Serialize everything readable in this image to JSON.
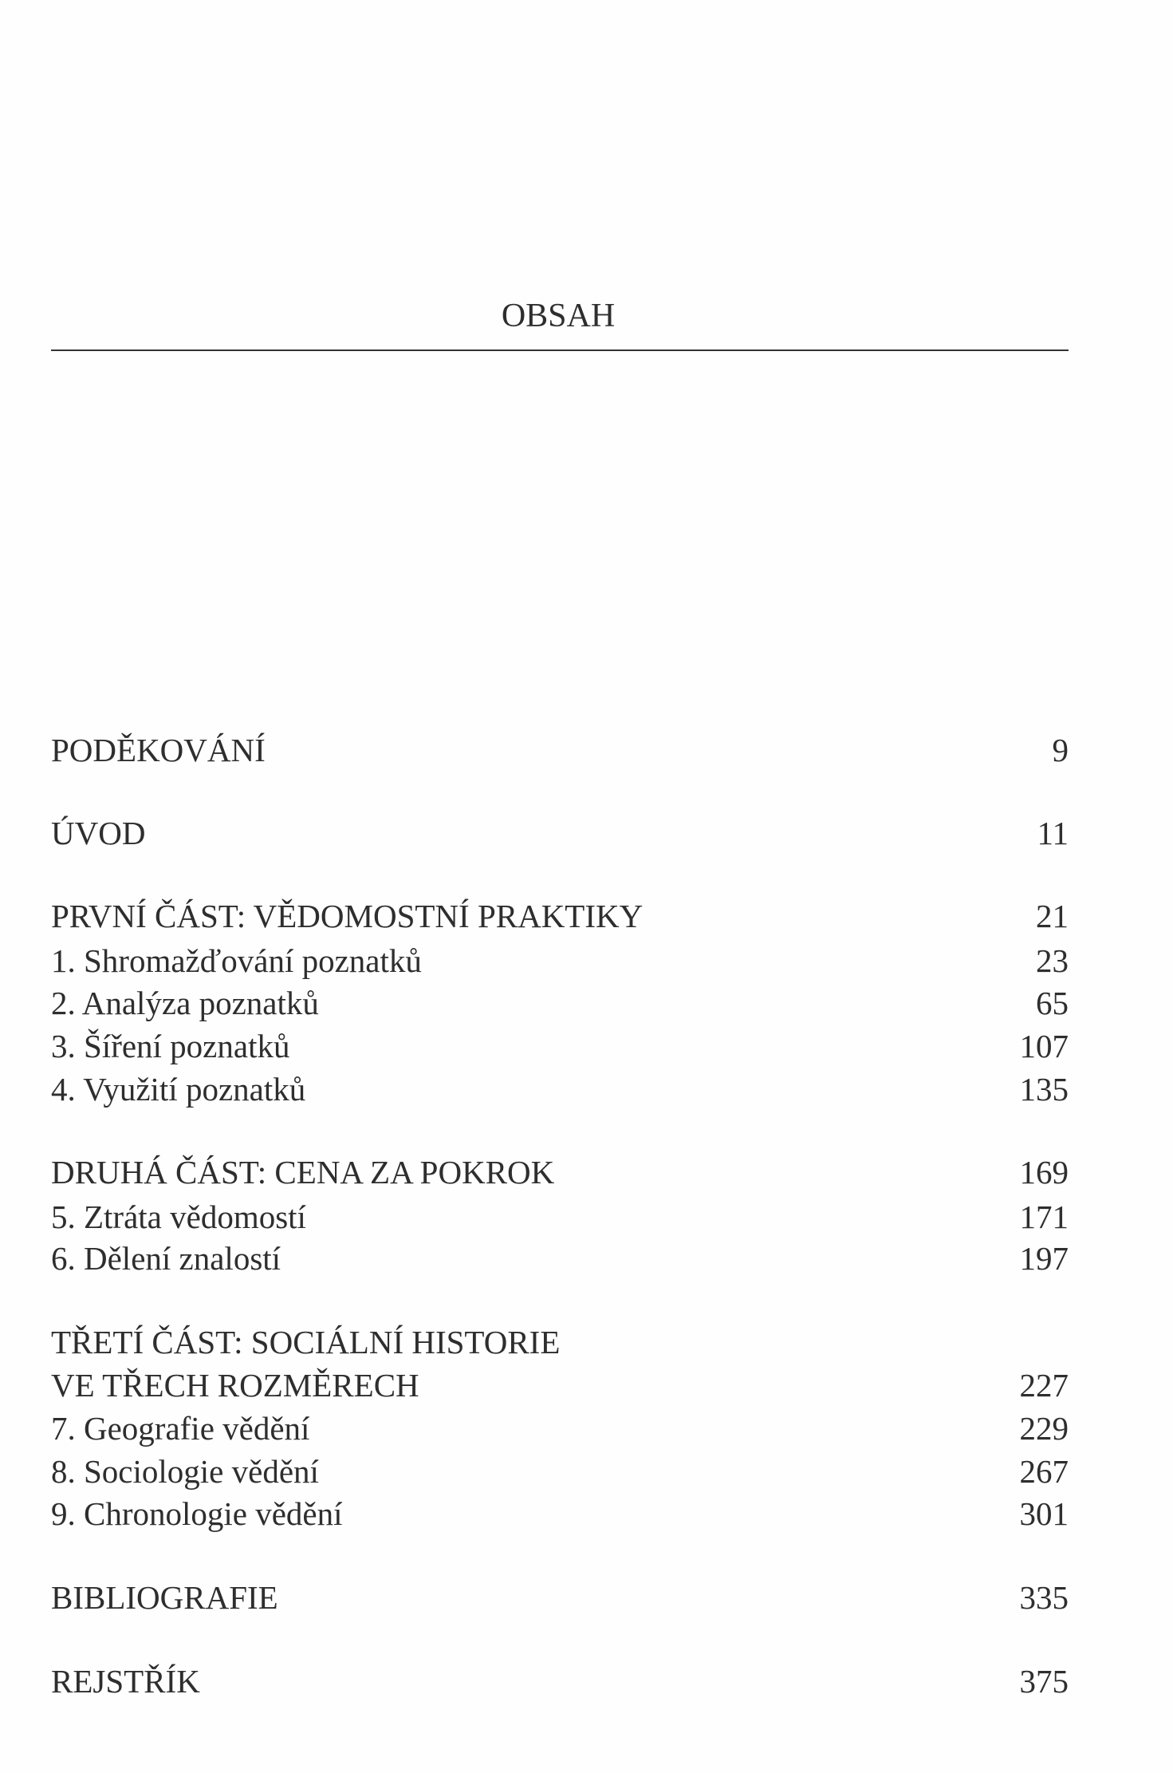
{
  "title": "OBSAH",
  "entries": [
    {
      "label": "PODĚKOVÁNÍ",
      "page": "9"
    },
    {
      "label": "ÚVOD",
      "page": "11"
    },
    {
      "label": "PRVNÍ ČÁST: VĚDOMOSTNÍ PRAKTIKY",
      "page": "21"
    },
    {
      "label": "1. Shromažďování poznatků",
      "page": "23"
    },
    {
      "label": "2. Analýza poznatků",
      "page": "65"
    },
    {
      "label": "3. Šíření poznatků",
      "page": "107"
    },
    {
      "label": "4. Využití poznatků",
      "page": "135"
    },
    {
      "label": "DRUHÁ ČÁST: CENA ZA POKROK",
      "page": "169"
    },
    {
      "label": "5. Ztráta vědomostí",
      "page": "171"
    },
    {
      "label": "6. Dělení znalostí",
      "page": "197"
    },
    {
      "label": "TŘETÍ ČÁST: SOCIÁLNÍ HISTORIE",
      "page": ""
    },
    {
      "label": "VE TŘECH ROZMĚRECH",
      "page": "227"
    },
    {
      "label": "7. Geografie vědění",
      "page": "229"
    },
    {
      "label": "8. Sociologie vědění",
      "page": "267"
    },
    {
      "label": "9. Chronologie vědění",
      "page": "301"
    },
    {
      "label": "BIBLIOGRAFIE",
      "page": "335"
    },
    {
      "label": "REJSTŘÍK",
      "page": "375"
    }
  ]
}
